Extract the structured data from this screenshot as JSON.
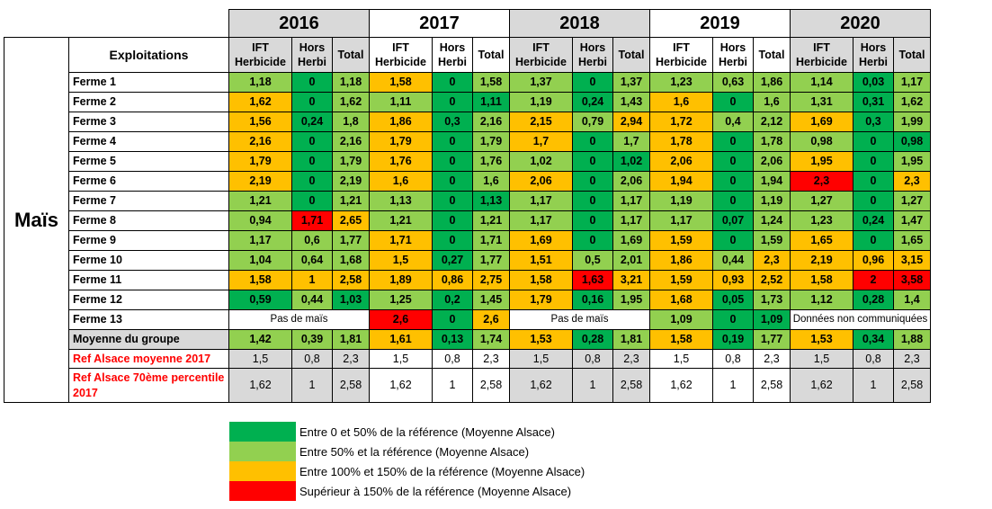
{
  "table": {
    "crop_label": "Maïs",
    "farms_header": "Exploitations",
    "years": [
      "2016",
      "2017",
      "2018",
      "2019",
      "2020"
    ],
    "sub_headers": {
      "ift": "IFT Herbicide",
      "hors": "Hors Herbi",
      "total": "Total"
    },
    "rows": [
      {
        "label": "Ferme 1",
        "bold": true,
        "cells": [
          {
            "v": "1,18",
            "c": "lg"
          },
          {
            "v": "0",
            "c": "dg"
          },
          {
            "v": "1,18",
            "c": "lg"
          },
          {
            "v": "1,58",
            "c": "o"
          },
          {
            "v": "0",
            "c": "dg"
          },
          {
            "v": "1,58",
            "c": "lg"
          },
          {
            "v": "1,37",
            "c": "lg"
          },
          {
            "v": "0",
            "c": "dg"
          },
          {
            "v": "1,37",
            "c": "lg"
          },
          {
            "v": "1,23",
            "c": "lg"
          },
          {
            "v": "0,63",
            "c": "lg"
          },
          {
            "v": "1,86",
            "c": "lg"
          },
          {
            "v": "1,14",
            "c": "lg"
          },
          {
            "v": "0,03",
            "c": "dg"
          },
          {
            "v": "1,17",
            "c": "lg"
          }
        ]
      },
      {
        "label": "Ferme 2",
        "bold": true,
        "cells": [
          {
            "v": "1,62",
            "c": "o"
          },
          {
            "v": "0",
            "c": "dg"
          },
          {
            "v": "1,62",
            "c": "lg"
          },
          {
            "v": "1,11",
            "c": "lg"
          },
          {
            "v": "0",
            "c": "dg"
          },
          {
            "v": "1,11",
            "c": "dg"
          },
          {
            "v": "1,19",
            "c": "lg"
          },
          {
            "v": "0,24",
            "c": "dg"
          },
          {
            "v": "1,43",
            "c": "lg"
          },
          {
            "v": "1,6",
            "c": "o"
          },
          {
            "v": "0",
            "c": "dg"
          },
          {
            "v": "1,6",
            "c": "lg"
          },
          {
            "v": "1,31",
            "c": "lg"
          },
          {
            "v": "0,31",
            "c": "dg"
          },
          {
            "v": "1,62",
            "c": "lg"
          }
        ]
      },
      {
        "label": "Ferme 3",
        "bold": true,
        "cells": [
          {
            "v": "1,56",
            "c": "o"
          },
          {
            "v": "0,24",
            "c": "dg"
          },
          {
            "v": "1,8",
            "c": "lg"
          },
          {
            "v": "1,86",
            "c": "o"
          },
          {
            "v": "0,3",
            "c": "dg"
          },
          {
            "v": "2,16",
            "c": "lg"
          },
          {
            "v": "2,15",
            "c": "o"
          },
          {
            "v": "0,79",
            "c": "lg"
          },
          {
            "v": "2,94",
            "c": "o"
          },
          {
            "v": "1,72",
            "c": "o"
          },
          {
            "v": "0,4",
            "c": "lg"
          },
          {
            "v": "2,12",
            "c": "lg"
          },
          {
            "v": "1,69",
            "c": "o"
          },
          {
            "v": "0,3",
            "c": "dg"
          },
          {
            "v": "1,99",
            "c": "lg"
          }
        ]
      },
      {
        "label": "Ferme 4",
        "bold": true,
        "cells": [
          {
            "v": "2,16",
            "c": "o"
          },
          {
            "v": "0",
            "c": "dg"
          },
          {
            "v": "2,16",
            "c": "lg"
          },
          {
            "v": "1,79",
            "c": "o"
          },
          {
            "v": "0",
            "c": "dg"
          },
          {
            "v": "1,79",
            "c": "lg"
          },
          {
            "v": "1,7",
            "c": "o"
          },
          {
            "v": "0",
            "c": "dg"
          },
          {
            "v": "1,7",
            "c": "lg"
          },
          {
            "v": "1,78",
            "c": "o"
          },
          {
            "v": "0",
            "c": "dg"
          },
          {
            "v": "1,78",
            "c": "lg"
          },
          {
            "v": "0,98",
            "c": "lg"
          },
          {
            "v": "0",
            "c": "dg"
          },
          {
            "v": "0,98",
            "c": "dg"
          }
        ]
      },
      {
        "label": "Ferme 5",
        "bold": true,
        "cells": [
          {
            "v": "1,79",
            "c": "o"
          },
          {
            "v": "0",
            "c": "dg"
          },
          {
            "v": "1,79",
            "c": "lg"
          },
          {
            "v": "1,76",
            "c": "o"
          },
          {
            "v": "0",
            "c": "dg"
          },
          {
            "v": "1,76",
            "c": "lg"
          },
          {
            "v": "1,02",
            "c": "lg"
          },
          {
            "v": "0",
            "c": "dg"
          },
          {
            "v": "1,02",
            "c": "dg"
          },
          {
            "v": "2,06",
            "c": "o"
          },
          {
            "v": "0",
            "c": "dg"
          },
          {
            "v": "2,06",
            "c": "lg"
          },
          {
            "v": "1,95",
            "c": "o"
          },
          {
            "v": "0",
            "c": "dg"
          },
          {
            "v": "1,95",
            "c": "lg"
          }
        ]
      },
      {
        "label": "Ferme 6",
        "bold": true,
        "cells": [
          {
            "v": "2,19",
            "c": "o"
          },
          {
            "v": "0",
            "c": "dg"
          },
          {
            "v": "2,19",
            "c": "lg"
          },
          {
            "v": "1,6",
            "c": "o"
          },
          {
            "v": "0",
            "c": "dg"
          },
          {
            "v": "1,6",
            "c": "lg"
          },
          {
            "v": "2,06",
            "c": "o"
          },
          {
            "v": "0",
            "c": "dg"
          },
          {
            "v": "2,06",
            "c": "lg"
          },
          {
            "v": "1,94",
            "c": "o"
          },
          {
            "v": "0",
            "c": "dg"
          },
          {
            "v": "1,94",
            "c": "lg"
          },
          {
            "v": "2,3",
            "c": "r"
          },
          {
            "v": "0",
            "c": "dg"
          },
          {
            "v": "2,3",
            "c": "o"
          }
        ]
      },
      {
        "label": "Ferme 7",
        "bold": true,
        "cells": [
          {
            "v": "1,21",
            "c": "lg"
          },
          {
            "v": "0",
            "c": "dg"
          },
          {
            "v": "1,21",
            "c": "lg"
          },
          {
            "v": "1,13",
            "c": "lg"
          },
          {
            "v": "0",
            "c": "dg"
          },
          {
            "v": "1,13",
            "c": "dg"
          },
          {
            "v": "1,17",
            "c": "lg"
          },
          {
            "v": "0",
            "c": "dg"
          },
          {
            "v": "1,17",
            "c": "lg"
          },
          {
            "v": "1,19",
            "c": "lg"
          },
          {
            "v": "0",
            "c": "dg"
          },
          {
            "v": "1,19",
            "c": "lg"
          },
          {
            "v": "1,27",
            "c": "lg"
          },
          {
            "v": "0",
            "c": "dg"
          },
          {
            "v": "1,27",
            "c": "lg"
          }
        ]
      },
      {
        "label": "Ferme 8",
        "bold": true,
        "cells": [
          {
            "v": "0,94",
            "c": "lg"
          },
          {
            "v": "1,71",
            "c": "r"
          },
          {
            "v": "2,65",
            "c": "o"
          },
          {
            "v": "1,21",
            "c": "lg"
          },
          {
            "v": "0",
            "c": "dg"
          },
          {
            "v": "1,21",
            "c": "lg"
          },
          {
            "v": "1,17",
            "c": "lg"
          },
          {
            "v": "0",
            "c": "dg"
          },
          {
            "v": "1,17",
            "c": "lg"
          },
          {
            "v": "1,17",
            "c": "lg"
          },
          {
            "v": "0,07",
            "c": "dg"
          },
          {
            "v": "1,24",
            "c": "lg"
          },
          {
            "v": "1,23",
            "c": "lg"
          },
          {
            "v": "0,24",
            "c": "dg"
          },
          {
            "v": "1,47",
            "c": "lg"
          }
        ]
      },
      {
        "label": "Ferme 9",
        "bold": true,
        "cells": [
          {
            "v": "1,17",
            "c": "lg"
          },
          {
            "v": "0,6",
            "c": "lg"
          },
          {
            "v": "1,77",
            "c": "lg"
          },
          {
            "v": "1,71",
            "c": "o"
          },
          {
            "v": "0",
            "c": "dg"
          },
          {
            "v": "1,71",
            "c": "lg"
          },
          {
            "v": "1,69",
            "c": "o"
          },
          {
            "v": "0",
            "c": "dg"
          },
          {
            "v": "1,69",
            "c": "lg"
          },
          {
            "v": "1,59",
            "c": "o"
          },
          {
            "v": "0",
            "c": "dg"
          },
          {
            "v": "1,59",
            "c": "lg"
          },
          {
            "v": "1,65",
            "c": "o"
          },
          {
            "v": "0",
            "c": "dg"
          },
          {
            "v": "1,65",
            "c": "lg"
          }
        ]
      },
      {
        "label": "Ferme 10",
        "bold": true,
        "cells": [
          {
            "v": "1,04",
            "c": "lg"
          },
          {
            "v": "0,64",
            "c": "lg"
          },
          {
            "v": "1,68",
            "c": "lg"
          },
          {
            "v": "1,5",
            "c": "o"
          },
          {
            "v": "0,27",
            "c": "dg"
          },
          {
            "v": "1,77",
            "c": "lg"
          },
          {
            "v": "1,51",
            "c": "o"
          },
          {
            "v": "0,5",
            "c": "lg"
          },
          {
            "v": "2,01",
            "c": "lg"
          },
          {
            "v": "1,86",
            "c": "o"
          },
          {
            "v": "0,44",
            "c": "lg"
          },
          {
            "v": "2,3",
            "c": "o"
          },
          {
            "v": "2,19",
            "c": "o"
          },
          {
            "v": "0,96",
            "c": "o"
          },
          {
            "v": "3,15",
            "c": "o"
          }
        ]
      },
      {
        "label": "Ferme 11",
        "bold": true,
        "cells": [
          {
            "v": "1,58",
            "c": "o"
          },
          {
            "v": "1",
            "c": "o"
          },
          {
            "v": "2,58",
            "c": "o"
          },
          {
            "v": "1,89",
            "c": "o"
          },
          {
            "v": "0,86",
            "c": "o"
          },
          {
            "v": "2,75",
            "c": "o"
          },
          {
            "v": "1,58",
            "c": "o"
          },
          {
            "v": "1,63",
            "c": "r"
          },
          {
            "v": "3,21",
            "c": "o"
          },
          {
            "v": "1,59",
            "c": "o"
          },
          {
            "v": "0,93",
            "c": "o"
          },
          {
            "v": "2,52",
            "c": "o"
          },
          {
            "v": "1,58",
            "c": "o"
          },
          {
            "v": "2",
            "c": "r"
          },
          {
            "v": "3,58",
            "c": "r"
          }
        ]
      },
      {
        "label": "Ferme 12",
        "bold": true,
        "cells": [
          {
            "v": "0,59",
            "c": "dg"
          },
          {
            "v": "0,44",
            "c": "lg"
          },
          {
            "v": "1,03",
            "c": "dg"
          },
          {
            "v": "1,25",
            "c": "lg"
          },
          {
            "v": "0,2",
            "c": "dg"
          },
          {
            "v": "1,45",
            "c": "lg"
          },
          {
            "v": "1,79",
            "c": "o"
          },
          {
            "v": "0,16",
            "c": "dg"
          },
          {
            "v": "1,95",
            "c": "lg"
          },
          {
            "v": "1,68",
            "c": "o"
          },
          {
            "v": "0,05",
            "c": "dg"
          },
          {
            "v": "1,73",
            "c": "lg"
          },
          {
            "v": "1,12",
            "c": "lg"
          },
          {
            "v": "0,28",
            "c": "dg"
          },
          {
            "v": "1,4",
            "c": "lg"
          }
        ]
      },
      {
        "label": "Ferme 13",
        "bold": true,
        "groups": [
          {
            "span": true,
            "text": "Pas de maïs"
          },
          {
            "cells": [
              {
                "v": "2,6",
                "c": "r"
              },
              {
                "v": "0",
                "c": "dg"
              },
              {
                "v": "2,6",
                "c": "o"
              }
            ]
          },
          {
            "span": true,
            "text": "Pas de maïs"
          },
          {
            "cells": [
              {
                "v": "1,09",
                "c": "lg"
              },
              {
                "v": "0",
                "c": "dg"
              },
              {
                "v": "1,09",
                "c": "dg"
              }
            ]
          },
          {
            "span": true,
            "text": "Données non communiquées"
          }
        ]
      },
      {
        "label": "Moyenne du groupe",
        "type": "avg",
        "bold": true,
        "cells": [
          {
            "v": "1,42",
            "c": "lg"
          },
          {
            "v": "0,39",
            "c": "lg"
          },
          {
            "v": "1,81",
            "c": "lg"
          },
          {
            "v": "1,61",
            "c": "o"
          },
          {
            "v": "0,13",
            "c": "dg"
          },
          {
            "v": "1,74",
            "c": "lg"
          },
          {
            "v": "1,53",
            "c": "o"
          },
          {
            "v": "0,28",
            "c": "dg"
          },
          {
            "v": "1,81",
            "c": "lg"
          },
          {
            "v": "1,58",
            "c": "o"
          },
          {
            "v": "0,19",
            "c": "dg"
          },
          {
            "v": "1,77",
            "c": "lg"
          },
          {
            "v": "1,53",
            "c": "o"
          },
          {
            "v": "0,34",
            "c": "dg"
          },
          {
            "v": "1,88",
            "c": "lg"
          }
        ]
      },
      {
        "label": "Ref Alsace moyenne 2017",
        "type": "ref",
        "cells": [
          {
            "v": "1,5",
            "c": "gr"
          },
          {
            "v": "0,8",
            "c": "gr"
          },
          {
            "v": "2,3",
            "c": "gr"
          },
          {
            "v": "1,5",
            "c": "w"
          },
          {
            "v": "0,8",
            "c": "w"
          },
          {
            "v": "2,3",
            "c": "w"
          },
          {
            "v": "1,5",
            "c": "gr"
          },
          {
            "v": "0,8",
            "c": "gr"
          },
          {
            "v": "2,3",
            "c": "gr"
          },
          {
            "v": "1,5",
            "c": "w"
          },
          {
            "v": "0,8",
            "c": "w"
          },
          {
            "v": "2,3",
            "c": "w"
          },
          {
            "v": "1,5",
            "c": "gr"
          },
          {
            "v": "0,8",
            "c": "gr"
          },
          {
            "v": "2,3",
            "c": "gr"
          }
        ]
      },
      {
        "label": "Ref Alsace 70ème percentile 2017",
        "type": "ref",
        "cells": [
          {
            "v": "1,62",
            "c": "gr"
          },
          {
            "v": "1",
            "c": "gr"
          },
          {
            "v": "2,58",
            "c": "gr"
          },
          {
            "v": "1,62",
            "c": "w"
          },
          {
            "v": "1",
            "c": "w"
          },
          {
            "v": "2,58",
            "c": "w"
          },
          {
            "v": "1,62",
            "c": "gr"
          },
          {
            "v": "1",
            "c": "gr"
          },
          {
            "v": "2,58",
            "c": "gr"
          },
          {
            "v": "1,62",
            "c": "w"
          },
          {
            "v": "1",
            "c": "w"
          },
          {
            "v": "2,58",
            "c": "w"
          },
          {
            "v": "1,62",
            "c": "gr"
          },
          {
            "v": "1",
            "c": "gr"
          },
          {
            "v": "2,58",
            "c": "gr"
          }
        ]
      }
    ]
  },
  "legend": [
    {
      "color": "#00b050",
      "label": "Entre 0 et 50% de la référence (Moyenne Alsace)"
    },
    {
      "color": "#92d050",
      "label": "Entre 50% et la référence (Moyenne Alsace)"
    },
    {
      "color": "#ffc000",
      "label": "Entre 100% et 150% de la référence (Moyenne Alsace)"
    },
    {
      "color": "#ff0000",
      "label": "Supérieur à 150% de la référence (Moyenne Alsace)"
    }
  ]
}
